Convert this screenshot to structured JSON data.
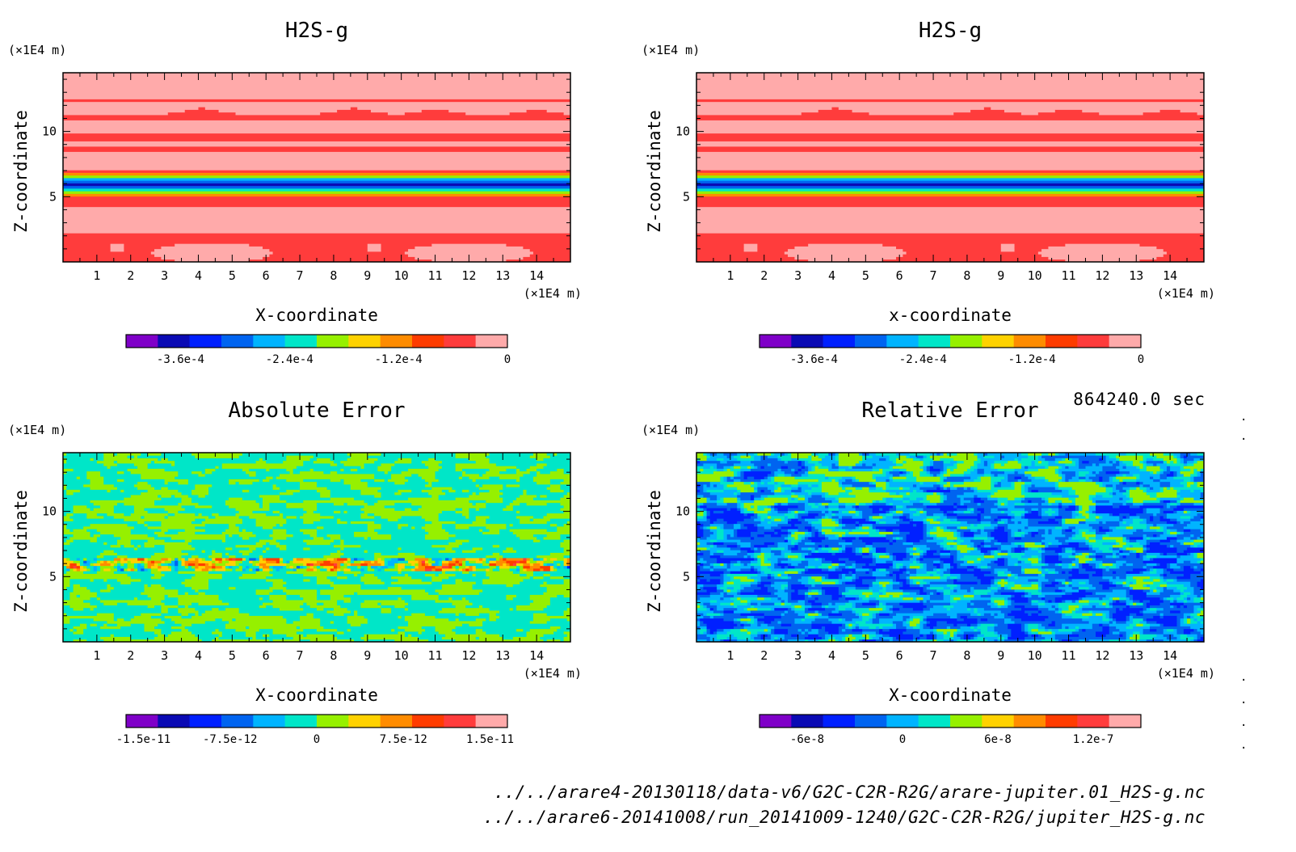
{
  "figure": {
    "timestamp": "864240.0 sec",
    "file_paths": [
      "../../arare4-20130118/data-v6/G2C-C2R-R2G/arare-jupiter.01_H2S-g.nc",
      "../../arare6-20141008/run_20141009-1240/G2C-C2R-R2G/jupiter_H2S-g.nc"
    ]
  },
  "palette": [
    "#7f00c8",
    "#0a0ab4",
    "#0020ff",
    "#0064f0",
    "#00b4ff",
    "#00e6c8",
    "#96f000",
    "#ffd200",
    "#ff8c00",
    "#ff3c00",
    "#ff3c3c",
    "#ffaaaa"
  ],
  "chart_data": [
    {
      "type": "heatmap",
      "title": "H2S-g",
      "xlabel": "X-coordinate",
      "ylabel": "Z-coordinate",
      "xunit": "(×1E4 m)",
      "yunit": "(×1E4 m)",
      "xlim": [
        0,
        15
      ],
      "ylim": [
        0,
        14.5
      ],
      "xticks": [
        1,
        2,
        3,
        4,
        5,
        6,
        7,
        8,
        9,
        10,
        11,
        12,
        13,
        14
      ],
      "yticks": [
        5,
        10
      ],
      "pattern": "layers",
      "colorbar": {
        "levels": 12,
        "range": [
          -0.00042,
          0
        ],
        "tick_values": [
          -0.00036,
          -0.00024,
          -0.00012,
          0
        ],
        "tick_labels": [
          "-3.6e-4",
          "-2.4e-4",
          "-1.2e-4",
          "0"
        ]
      }
    },
    {
      "type": "heatmap",
      "title": "H2S-g",
      "xlabel": "x-coordinate",
      "ylabel": "Z-coordinate",
      "xunit": "(×1E4 m)",
      "yunit": "(×1E4 m)",
      "xlim": [
        0,
        15
      ],
      "ylim": [
        0,
        14.5
      ],
      "xticks": [
        1,
        2,
        3,
        4,
        5,
        6,
        7,
        8,
        9,
        10,
        11,
        12,
        13,
        14
      ],
      "yticks": [
        5,
        10
      ],
      "pattern": "layers",
      "colorbar": {
        "levels": 12,
        "range": [
          -0.00042,
          0
        ],
        "tick_values": [
          -0.00036,
          -0.00024,
          -0.00012,
          0
        ],
        "tick_labels": [
          "-3.6e-4",
          "-2.4e-4",
          "-1.2e-4",
          "0"
        ]
      }
    },
    {
      "type": "heatmap",
      "title": "Absolute Error",
      "xlabel": "X-coordinate",
      "ylabel": "Z-coordinate",
      "xunit": "(×1E4 m)",
      "yunit": "(×1E4 m)",
      "xlim": [
        0,
        15
      ],
      "ylim": [
        0,
        14.5
      ],
      "xticks": [
        1,
        2,
        3,
        4,
        5,
        6,
        7,
        8,
        9,
        10,
        11,
        12,
        13,
        14
      ],
      "yticks": [
        5,
        10
      ],
      "pattern": "abs_noise",
      "colorbar": {
        "levels": 12,
        "range": [
          -1.65e-11,
          1.65e-11
        ],
        "tick_values": [
          -1.5e-11,
          -7.5e-12,
          0,
          7.5e-12,
          1.5e-11
        ],
        "tick_labels": [
          "-1.5e-11",
          "-7.5e-12",
          "0",
          "7.5e-12",
          "1.5e-11"
        ]
      }
    },
    {
      "type": "heatmap",
      "title": "Relative Error",
      "xlabel": "X-coordinate",
      "ylabel": "Z-coordinate",
      "xunit": "(×1E4 m)",
      "yunit": "(×1E4 m)",
      "xlim": [
        0,
        15
      ],
      "ylim": [
        0,
        14.5
      ],
      "xticks": [
        1,
        2,
        3,
        4,
        5,
        6,
        7,
        8,
        9,
        10,
        11,
        12,
        13,
        14
      ],
      "yticks": [
        5,
        10
      ],
      "pattern": "rel_noise",
      "colorbar": {
        "levels": 12,
        "range": [
          -9e-08,
          1.5e-07
        ],
        "tick_values": [
          -6e-08,
          0,
          6e-08,
          1.2e-07
        ],
        "tick_labels": [
          "-6e-8",
          "0",
          "6e-8",
          "1.2e-7"
        ]
      }
    }
  ]
}
